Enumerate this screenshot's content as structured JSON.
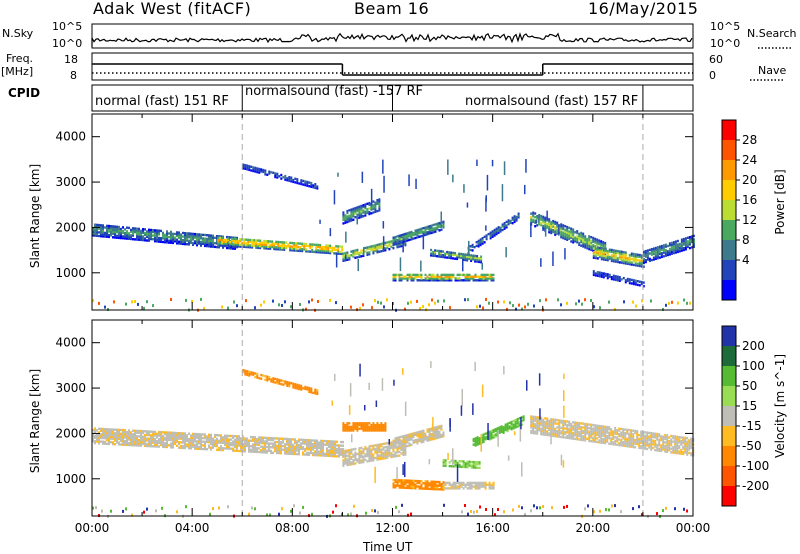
{
  "header": {
    "station": "Adak West (fitACF)",
    "beam": "Beam 16",
    "date": "16/May/2015"
  },
  "status_panels": {
    "nsky_label": "N.Sky",
    "nsky_ticks": [
      "10^5",
      "10^0"
    ],
    "nsearch_label": "N.Search",
    "nsearch_ticks": [
      "10^5",
      "10^0"
    ],
    "freq_label": "Freq.",
    "freq_unit": "[MHz]",
    "freq_ticks": [
      "18",
      "8"
    ],
    "nave_label": "Nave",
    "nave_ticks": [
      "60",
      "0"
    ],
    "cpid_label": "CPID",
    "cpid_segments": [
      {
        "label": "normal (fast) 151 RF",
        "start_hour": 0,
        "end_hour": 6
      },
      {
        "label": "normalsound (fast) -157 RF",
        "start_hour": 6,
        "end_hour": 12
      },
      {
        "label": "normalsound (fast) 157 RF",
        "start_hour": 12,
        "end_hour": 22
      }
    ],
    "freq_step": [
      {
        "start_hour": 0,
        "end_hour": 10,
        "level": "high"
      },
      {
        "start_hour": 10,
        "end_hour": 18,
        "level": "low"
      },
      {
        "start_hour": 18,
        "end_hour": 24,
        "level": "high"
      }
    ]
  },
  "chart_data": [
    {
      "type": "heatmap",
      "name": "power-panel",
      "ylabel": "Slant Range [km]",
      "xlabel": "",
      "xlim": [
        0,
        24
      ],
      "ylim": [
        180,
        4500
      ],
      "y_ticks": [
        "4000",
        "3000",
        "2000",
        "1000"
      ],
      "colorbar_label": "Power [dB]",
      "colorbar_ticks": [
        "28",
        "24",
        "20",
        "16",
        "12",
        "8",
        "4"
      ],
      "colorbar_colors": [
        "#ff0000",
        "#ff5500",
        "#ff9900",
        "#ffcc00",
        "#bbdd33",
        "#4aa860",
        "#3c7a8c",
        "#2244bb",
        "#0000ff"
      ],
      "echo_bands": [
        {
          "t0": 0.0,
          "t1": 5.8,
          "r0": 1950,
          "r1": 1650,
          "w": 280,
          "p": 10
        },
        {
          "t0": 5.0,
          "t1": 10.0,
          "r0": 1700,
          "r1": 1500,
          "w": 200,
          "p": 20
        },
        {
          "t0": 10.0,
          "t1": 12.5,
          "r0": 1350,
          "r1": 1700,
          "w": 200,
          "p": 16
        },
        {
          "t0": 12.0,
          "t1": 14.0,
          "r0": 1700,
          "r1": 2050,
          "w": 200,
          "p": 12
        },
        {
          "t0": 13.5,
          "t1": 15.5,
          "r0": 1450,
          "r1": 1300,
          "w": 160,
          "p": 12
        },
        {
          "t0": 15.0,
          "t1": 17.0,
          "r0": 1500,
          "r1": 2250,
          "w": 160,
          "p": 8
        },
        {
          "t0": 12.0,
          "t1": 16.0,
          "r0": 900,
          "r1": 900,
          "w": 160,
          "p": 18
        },
        {
          "t0": 17.5,
          "t1": 20.5,
          "r0": 2200,
          "r1": 1500,
          "w": 300,
          "p": 14
        },
        {
          "t0": 20.0,
          "t1": 22.0,
          "r0": 1450,
          "r1": 1250,
          "w": 260,
          "p": 18
        },
        {
          "t0": 22.0,
          "t1": 24.0,
          "r0": 1350,
          "r1": 1700,
          "w": 280,
          "p": 10
        },
        {
          "t0": 6.0,
          "t1": 9.0,
          "r0": 3350,
          "r1": 2900,
          "w": 120,
          "p": 6
        },
        {
          "t0": 10.0,
          "t1": 11.5,
          "r0": 2200,
          "r1": 2500,
          "w": 250,
          "p": 12
        },
        {
          "t0": 20.0,
          "t1": 22.0,
          "r0": 1000,
          "r1": 750,
          "w": 120,
          "p": 6
        }
      ]
    },
    {
      "type": "heatmap",
      "name": "velocity-panel",
      "ylabel": "Slant Range [km]",
      "xlabel": "Time UT",
      "xlim": [
        0,
        24
      ],
      "ylim": [
        180,
        4500
      ],
      "y_ticks": [
        "4000",
        "3000",
        "2000",
        "1000"
      ],
      "x_ticks": [
        "00:00",
        "04:00",
        "08:00",
        "12:00",
        "16:00",
        "20:00",
        "00:00"
      ],
      "colorbar_label": "Velocity [m s^-1]",
      "colorbar_ticks": [
        "200",
        "100",
        "50",
        "15",
        "-15",
        "-50",
        "-100",
        "-200"
      ],
      "colorbar_colors": [
        "#2233aa",
        "#1e6b3a",
        "#55bb33",
        "#99dd55",
        "#bebeb6",
        "#ffbb22",
        "#ff8800",
        "#ff5500",
        "#ff0000"
      ],
      "echo_bands": [
        {
          "t0": 0.0,
          "t1": 10.0,
          "r0": 1950,
          "r1": 1650,
          "w": 350,
          "v": -10
        },
        {
          "t0": 10.0,
          "t1": 12.5,
          "r0": 1450,
          "r1": 1700,
          "w": 350,
          "v": -10
        },
        {
          "t0": 12.0,
          "t1": 14.0,
          "r0": 1750,
          "r1": 2050,
          "w": 250,
          "v": -10
        },
        {
          "t0": 10.0,
          "t1": 11.7,
          "r0": 2150,
          "r1": 2150,
          "w": 200,
          "v": -60
        },
        {
          "t0": 14.0,
          "t1": 15.5,
          "r0": 1350,
          "r1": 1300,
          "w": 150,
          "v": 30
        },
        {
          "t0": 15.2,
          "t1": 17.2,
          "r0": 1800,
          "r1": 2300,
          "w": 200,
          "v": 40
        },
        {
          "t0": 12.0,
          "t1": 14.0,
          "r0": 900,
          "r1": 850,
          "w": 200,
          "v": -40
        },
        {
          "t0": 14.0,
          "t1": 16.0,
          "r0": 850,
          "r1": 850,
          "w": 150,
          "v": -10
        },
        {
          "t0": 17.5,
          "t1": 24.0,
          "r0": 2200,
          "r1": 1700,
          "w": 400,
          "v": -10
        },
        {
          "t0": 6.0,
          "t1": 9.0,
          "r0": 3350,
          "r1": 2900,
          "w": 100,
          "v": -40
        }
      ]
    }
  ]
}
